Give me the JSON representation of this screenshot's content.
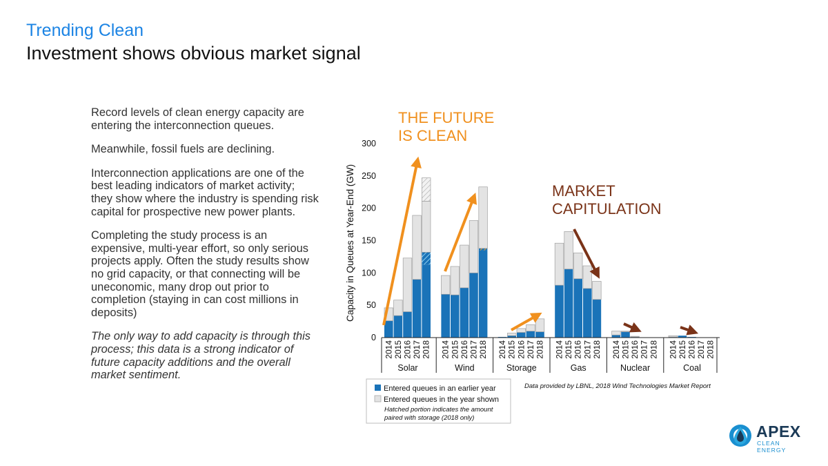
{
  "header": {
    "kicker": "Trending Clean",
    "title": "Investment shows obvious market signal"
  },
  "body": {
    "paragraphs": [
      "Record levels of clean energy capacity are entering the interconnection queues.",
      "Meanwhile, fossil fuels are declining.",
      "Interconnection applications are one of the best leading indicators of market activity; they show where the industry is spending risk capital for prospective new power plants.",
      "Completing the study process is an expensive, multi-year effort, so only serious projects apply. Often the study results show no grid capacity, or that connecting will be uneconomic, many drop out prior to completion (staying in can cost millions in deposits)"
    ],
    "closing": "The only way to add capacity is through this process; this data is a strong indicator of future capacity additions and the overall market sentiment."
  },
  "chart_data": {
    "type": "bar",
    "stacked": true,
    "ylabel": "Capacity in Queues at Year-End (GW)",
    "ylim": [
      0,
      300
    ],
    "yticks": [
      0,
      50,
      100,
      150,
      200,
      250,
      300
    ],
    "years": [
      "2014",
      "2015",
      "2016",
      "2017",
      "2018"
    ],
    "groups": [
      {
        "name": "Solar",
        "earlier": [
          26,
          34,
          40,
          90,
          132
        ],
        "new": [
          20,
          24,
          83,
          99,
          115
        ],
        "hatch_earlier": 19,
        "hatch_new": 36
      },
      {
        "name": "Wind",
        "earlier": [
          67,
          66,
          77,
          100,
          138
        ],
        "new": [
          29,
          44,
          66,
          81,
          95
        ],
        "hatch_earlier": 3,
        "hatch_new": 0
      },
      {
        "name": "Storage",
        "earlier": [
          1,
          3,
          8,
          10,
          9
        ],
        "new": [
          0,
          4,
          6,
          10,
          20
        ],
        "hatch_earlier": 0,
        "hatch_new": 0
      },
      {
        "name": "Gas",
        "earlier": [
          81,
          106,
          91,
          76,
          59
        ],
        "new": [
          65,
          58,
          40,
          35,
          28
        ],
        "hatch_earlier": 0,
        "hatch_new": 0
      },
      {
        "name": "Nuclear",
        "earlier": [
          4,
          9,
          1,
          0,
          0
        ],
        "new": [
          6,
          1,
          1,
          0,
          0
        ],
        "hatch_earlier": 0,
        "hatch_new": 0
      },
      {
        "name": "Coal",
        "earlier": [
          1,
          3,
          1,
          0,
          0
        ],
        "new": [
          2,
          0,
          0,
          0,
          0
        ],
        "hatch_earlier": 0,
        "hatch_new": 0
      }
    ],
    "legend": {
      "earlier": "Entered queues in an earlier year",
      "new": "Entered queues in the year shown",
      "note_line1": "Hatched portion indicates the amount",
      "note_line2": "paired with storage (2018 only)"
    },
    "annotations": {
      "future_line1": "THE FUTURE",
      "future_line2": "IS CLEAN",
      "market_line1": "MARKET",
      "market_line2": "CAPITULATION",
      "source": "Data provided by LBNL, 2018 Wind Technologies Market Report"
    },
    "colors": {
      "earlier": "#1a73b8",
      "new": "#e3e3e3",
      "orange": "#f0901e",
      "brown": "#7a3318",
      "axis": "#222222"
    }
  },
  "logo": {
    "name": "APEX",
    "sub": "CLEAN ENERGY"
  }
}
